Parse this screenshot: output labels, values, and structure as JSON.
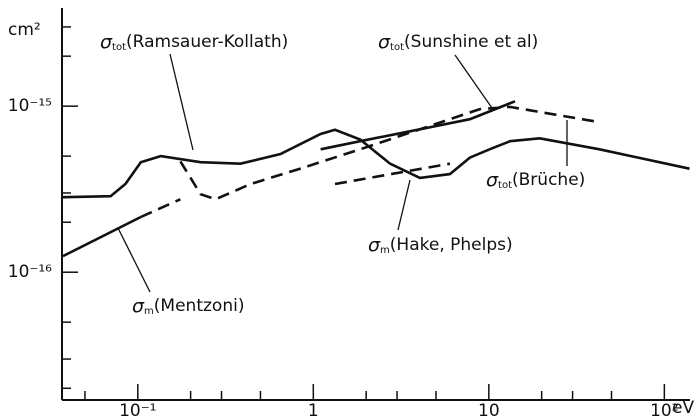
{
  "chart_data": {
    "type": "line",
    "x_scale": "log",
    "y_scale": "log",
    "y_label": "cm²",
    "x_label": "eV",
    "xlim": [
      0.037,
      140
    ],
    "ylim": [
      1.7e-17,
      3.9e-15
    ],
    "xticks": [
      {
        "value": 0.1,
        "label": "10⁻¹"
      },
      1,
      10,
      {
        "value": 100,
        "label": "10²"
      }
    ],
    "yticks": [
      {
        "value": 1e-15,
        "label": "10⁻¹⁵"
      },
      {
        "value": 1e-16,
        "label": "10⁻¹⁶"
      }
    ],
    "xticks_minor": [
      0.05,
      0.2,
      0.3,
      0.5,
      2,
      3,
      5,
      20,
      30,
      50
    ],
    "yticks_minor": [
      3e-15,
      2e-15,
      5e-16,
      3e-16,
      2e-16,
      5e-17,
      3e-17,
      2e-17
    ],
    "color": "#111111",
    "series": [
      {
        "symbol": "σ",
        "subscript": "tot",
        "name": "(Ramsauer-Kollath)",
        "style": "dashed",
        "x": [
          0.175,
          0.228,
          0.277,
          0.44,
          0.84,
          1.85,
          4.05,
          8.9,
          13.2,
          40
        ],
        "values": [
          4.65e-16,
          2.95e-16,
          2.75e-16,
          3.4e-16,
          4.2e-16,
          5.5e-16,
          7.25e-16,
          9.6e-16,
          9.9e-16,
          8.1e-16
        ]
      },
      {
        "symbol": "σ",
        "subscript": "tot",
        "name": "(Sunshine et al)",
        "style": "solid",
        "x": [
          1.1,
          1.85,
          4.05,
          7.8,
          14.1
        ],
        "values": [
          5.5e-16,
          6.15e-16,
          7.25e-16,
          8.35e-16,
          1.07e-15
        ]
      },
      {
        "symbol": "σ",
        "subscript": "tot",
        "name": "(Brüche)",
        "style": "solid",
        "x": [
          10.1,
          13.2,
          19.5,
          42.7,
          139
        ],
        "values": [
          5.5e-16,
          6.15e-16,
          6.4e-16,
          5.5e-16,
          4.2e-16
        ]
      },
      {
        "style": "dashed",
        "x": [
          1.33,
          6.0
        ],
        "values": [
          3.4e-16,
          4.5e-16
        ]
      },
      {
        "symbol": "σ",
        "subscript": "m",
        "name": "(Hake, Phelps)",
        "style": "solid",
        "x": [
          0.0375,
          0.07,
          0.085,
          0.104,
          0.135,
          0.228,
          0.385,
          0.65,
          1.1,
          1.33,
          1.85,
          2.74,
          4.05,
          6.0,
          7.8,
          10.1
        ],
        "values": [
          2.83e-16,
          2.87e-16,
          3.4e-16,
          4.6e-16,
          5e-16,
          4.6e-16,
          4.5e-16,
          5.15e-16,
          6.8e-16,
          7.2e-16,
          6.3e-16,
          4.5e-16,
          3.7e-16,
          3.9e-16,
          4.9e-16,
          5.5e-16
        ]
      },
      {
        "symbol": "σ",
        "subscript": "m",
        "name": "(Mentzoni)",
        "style": "solid",
        "x": [
          0.0375,
          0.104
        ],
        "values": [
          1.25e-16,
          2.15e-16
        ]
      },
      {
        "style": "dashed",
        "x": [
          0.104,
          0.175
        ],
        "values": [
          2.15e-16,
          2.75e-16
        ]
      }
    ]
  }
}
